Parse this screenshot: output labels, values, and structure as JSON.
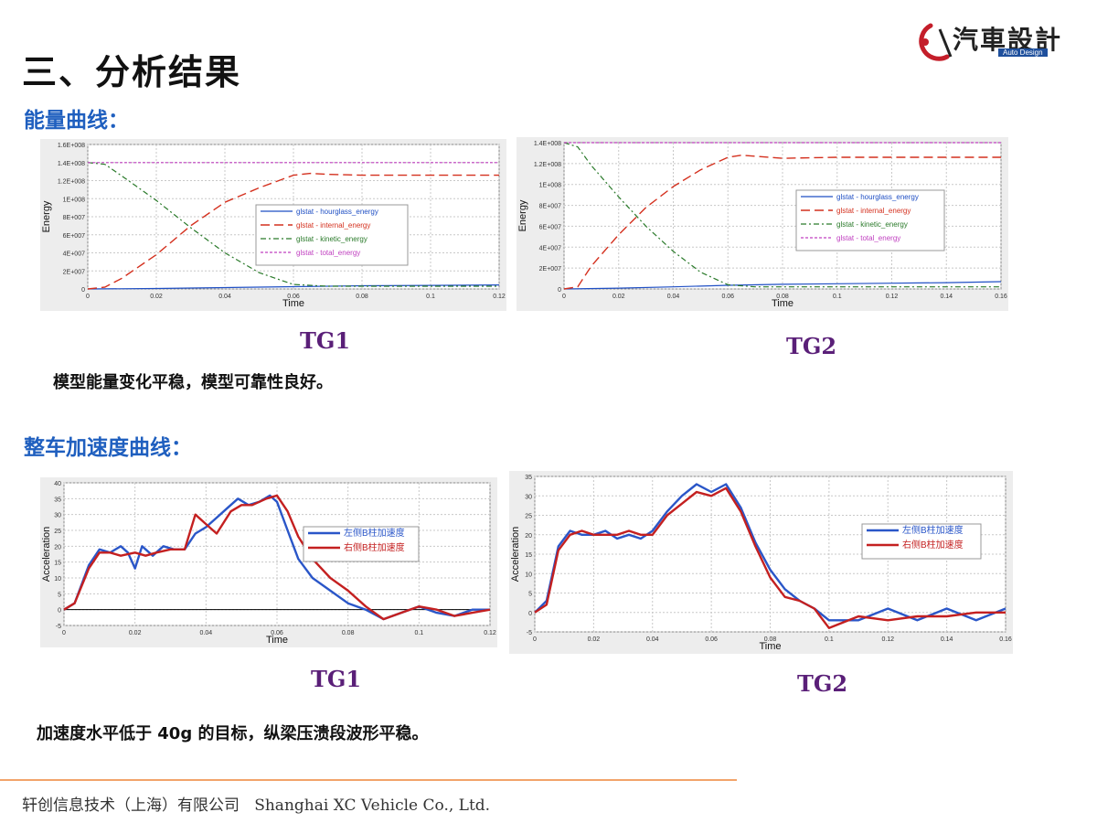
{
  "header": {
    "title": "三、分析结果",
    "logo_cn": "汽車設計",
    "logo_en": "Auto Design"
  },
  "sections": {
    "energy_heading": "能量曲线：",
    "accel_heading": "整车加速度曲线：",
    "energy_caption": "模型能量变化平稳，模型可靠性良好。",
    "accel_caption": "加速度水平低于 40g 的目标，纵梁压溃段波形平稳。",
    "tg1_label_a": "TG1",
    "tg2_label_a": "TG2",
    "tg1_label_b": "TG1",
    "tg2_label_b": "TG2"
  },
  "footer": {
    "text": "轩创信息技术（上海）有限公司   Shanghai XC Vehicle Co., Ltd."
  },
  "colors": {
    "hourglass": "#1f4fc4",
    "internal": "#d4301e",
    "kinetic": "#2a7a2a",
    "total": "#c040c0",
    "accel_left": "#2a56c8",
    "accel_right": "#c42020"
  },
  "chart_data": [
    {
      "type": "line",
      "id": "energy-tg1",
      "xlabel": "Time",
      "ylabel": "Energy",
      "xlim": [
        0,
        0.12
      ],
      "ylim": [
        0,
        160000000.0
      ],
      "xticks": [
        "0",
        "0.02",
        "0.04",
        "0.06",
        "0.08",
        "0.1",
        "0.12"
      ],
      "yticks": [
        "0",
        "2E+007",
        "4E+007",
        "6E+007",
        "8E+007",
        "1E+008",
        "1.2E+008",
        "1.4E+008",
        "1.6E+008"
      ],
      "legend_position": "center-right",
      "series": [
        {
          "name": "glstat - hourglass_energy",
          "style": "solid",
          "x": [
            0,
            0.02,
            0.04,
            0.06,
            0.08,
            0.1,
            0.12
          ],
          "values": [
            0,
            500000.0,
            1500000.0,
            2500000.0,
            3500000.0,
            4000000.0,
            4500000.0
          ]
        },
        {
          "name": "glstat - internal_energy",
          "style": "dash",
          "x": [
            0,
            0.005,
            0.01,
            0.02,
            0.03,
            0.04,
            0.05,
            0.06,
            0.065,
            0.07,
            0.08,
            0.1,
            0.12
          ],
          "values": [
            0,
            2000000.0,
            12000000.0,
            38000000.0,
            70000000.0,
            96000000.0,
            112000000.0,
            126000000.0,
            128000000.0,
            127000000.0,
            126000000.0,
            126000000.0,
            126000000.0
          ]
        },
        {
          "name": "glstat - kinetic_energy",
          "style": "dashdot",
          "x": [
            0,
            0.005,
            0.01,
            0.02,
            0.03,
            0.04,
            0.05,
            0.06,
            0.07,
            0.08,
            0.1,
            0.12
          ],
          "values": [
            140000000.0,
            138000000.0,
            125000000.0,
            98000000.0,
            68000000.0,
            40000000.0,
            18000000.0,
            5000000.0,
            3000000.0,
            3000000.0,
            3000000.0,
            3000000.0
          ]
        },
        {
          "name": "glstat - total_energy",
          "style": "dot",
          "x": [
            0,
            0.12
          ],
          "values": [
            140000000.0,
            140000000.0
          ]
        }
      ]
    },
    {
      "type": "line",
      "id": "energy-tg2",
      "xlabel": "Time",
      "ylabel": "Energy",
      "xlim": [
        0,
        0.16
      ],
      "ylim": [
        0,
        140000000.0
      ],
      "xticks": [
        "0",
        "0.02",
        "0.04",
        "0.06",
        "0.08",
        "0.1",
        "0.12",
        "0.14",
        "0.16"
      ],
      "yticks": [
        "0",
        "2E+007",
        "4E+007",
        "6E+007",
        "8E+007",
        "1E+008",
        "1.2E+008",
        "1.4E+008"
      ],
      "legend_position": "center-right",
      "series": [
        {
          "name": "glstat - hourglass_energy",
          "style": "solid",
          "x": [
            0,
            0.02,
            0.04,
            0.06,
            0.08,
            0.1,
            0.12,
            0.14,
            0.16
          ],
          "values": [
            0,
            800000.0,
            2000000.0,
            3500000.0,
            4500000.0,
            5000000.0,
            5500000.0,
            6000000.0,
            7000000.0
          ]
        },
        {
          "name": "glstat - internal_energy",
          "style": "dash",
          "x": [
            0,
            0.005,
            0.01,
            0.02,
            0.03,
            0.04,
            0.05,
            0.06,
            0.065,
            0.07,
            0.08,
            0.1,
            0.12,
            0.14,
            0.16
          ],
          "values": [
            0,
            2000000.0,
            22000000.0,
            52000000.0,
            78000000.0,
            98000000.0,
            114000000.0,
            126000000.0,
            128000000.0,
            127000000.0,
            125000000.0,
            126000000.0,
            126000000.0,
            126000000.0,
            126000000.0
          ]
        },
        {
          "name": "glstat - kinetic_energy",
          "style": "dashdot",
          "x": [
            0,
            0.005,
            0.01,
            0.02,
            0.03,
            0.04,
            0.05,
            0.06,
            0.07,
            0.08,
            0.1,
            0.12,
            0.14,
            0.16
          ],
          "values": [
            140000000.0,
            136000000.0,
            118000000.0,
            88000000.0,
            60000000.0,
            36000000.0,
            16000000.0,
            4000000.0,
            2000000.0,
            2000000.0,
            2000000.0,
            2000000.0,
            2000000.0,
            2000000.0
          ]
        },
        {
          "name": "glstat - total_energy",
          "style": "dot",
          "x": [
            0,
            0.16
          ],
          "values": [
            140000000.0,
            140000000.0
          ]
        }
      ]
    },
    {
      "type": "line",
      "id": "accel-tg1",
      "xlabel": "Time",
      "ylabel": "Acceleration",
      "xlim": [
        0,
        0.12
      ],
      "ylim": [
        -5,
        40
      ],
      "xticks": [
        "0",
        "0.02",
        "0.04",
        "0.06",
        "0.08",
        "0.1",
        "0.12"
      ],
      "yticks": [
        "-5",
        "0",
        "5",
        "10",
        "15",
        "20",
        "25",
        "30",
        "35",
        "40"
      ],
      "legend_position": "center-right",
      "series": [
        {
          "name": "左侧B柱加速度",
          "x": [
            0,
            0.003,
            0.007,
            0.01,
            0.013,
            0.016,
            0.018,
            0.02,
            0.022,
            0.025,
            0.028,
            0.031,
            0.034,
            0.037,
            0.04,
            0.043,
            0.046,
            0.049,
            0.052,
            0.055,
            0.058,
            0.06,
            0.063,
            0.066,
            0.07,
            0.075,
            0.08,
            0.085,
            0.09,
            0.095,
            0.1,
            0.105,
            0.11,
            0.115,
            0.12
          ],
          "values": [
            0,
            2,
            14,
            19,
            18,
            20,
            18,
            13,
            20,
            17,
            20,
            19,
            19,
            24,
            26,
            29,
            32,
            35,
            33,
            34,
            36,
            34,
            25,
            16,
            10,
            6,
            2,
            0,
            -3,
            -1,
            1,
            -1,
            -2,
            0,
            0
          ]
        },
        {
          "name": "右侧B柱加速度",
          "x": [
            0,
            0.003,
            0.007,
            0.01,
            0.013,
            0.016,
            0.02,
            0.023,
            0.026,
            0.03,
            0.034,
            0.037,
            0.04,
            0.043,
            0.047,
            0.05,
            0.053,
            0.057,
            0.06,
            0.063,
            0.066,
            0.07,
            0.075,
            0.08,
            0.085,
            0.09,
            0.095,
            0.1,
            0.105,
            0.11,
            0.115,
            0.12
          ],
          "values": [
            0,
            2,
            13,
            18,
            18,
            17,
            18,
            17,
            18,
            19,
            19,
            30,
            27,
            24,
            31,
            33,
            33,
            35,
            36,
            31,
            23,
            16,
            10,
            6,
            1,
            -3,
            -1,
            1,
            0,
            -2,
            -1,
            0
          ]
        }
      ]
    },
    {
      "type": "line",
      "id": "accel-tg2",
      "xlabel": "Time",
      "ylabel": "Acceleration",
      "xlim": [
        0,
        0.16
      ],
      "ylim": [
        -5,
        35
      ],
      "xticks": [
        "0",
        "0.02",
        "0.04",
        "0.06",
        "0.08",
        "0.1",
        "0.12",
        "0.14",
        "0.16"
      ],
      "yticks": [
        "-5",
        "0",
        "5",
        "10",
        "15",
        "20",
        "25",
        "30",
        "35"
      ],
      "legend_position": "center-right",
      "series": [
        {
          "name": "左侧B柱加速度",
          "x": [
            0,
            0.004,
            0.008,
            0.012,
            0.016,
            0.02,
            0.024,
            0.028,
            0.032,
            0.036,
            0.04,
            0.045,
            0.05,
            0.055,
            0.06,
            0.065,
            0.07,
            0.075,
            0.08,
            0.085,
            0.09,
            0.095,
            0.1,
            0.11,
            0.12,
            0.13,
            0.14,
            0.15,
            0.16
          ],
          "values": [
            0,
            3,
            17,
            21,
            20,
            20,
            21,
            19,
            20,
            19,
            21,
            26,
            30,
            33,
            31,
            33,
            27,
            18,
            11,
            6,
            3,
            1,
            -2,
            -2,
            1,
            -2,
            1,
            -2,
            1
          ]
        },
        {
          "name": "右侧B柱加速度",
          "x": [
            0,
            0.004,
            0.008,
            0.012,
            0.016,
            0.02,
            0.024,
            0.028,
            0.032,
            0.036,
            0.04,
            0.045,
            0.05,
            0.055,
            0.06,
            0.065,
            0.07,
            0.075,
            0.08,
            0.085,
            0.09,
            0.095,
            0.1,
            0.11,
            0.12,
            0.13,
            0.14,
            0.15,
            0.16
          ],
          "values": [
            0,
            2,
            16,
            20,
            21,
            20,
            20,
            20,
            21,
            20,
            20,
            25,
            28,
            31,
            30,
            32,
            26,
            17,
            9,
            4,
            3,
            1,
            -4,
            -1,
            -2,
            -1,
            -1,
            0,
            0
          ]
        }
      ]
    }
  ]
}
